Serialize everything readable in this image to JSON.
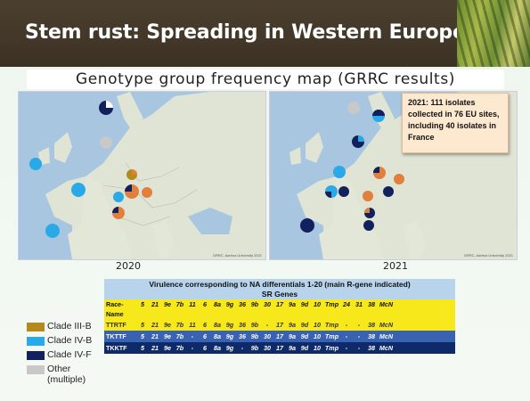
{
  "header": {
    "title": "Stem rust: Spreading in Western Europe"
  },
  "subtitle": "Genotype group frequency map (GRRC results)",
  "maps": [
    {
      "year": "2020",
      "credit": "GRRC, Aarhus University 2021"
    },
    {
      "year": "2021",
      "credit": "GRRC, Aarhus University 2021"
    }
  ],
  "callout": "2021: 111 isolates collected in 76 EU sites, including 40 isolates in France",
  "legend": [
    {
      "label": "Clade III-B",
      "color": "#b58a1c"
    },
    {
      "label": "Clade IV-B",
      "color": "#29a9e8"
    },
    {
      "label": "Clade IV-F",
      "color": "#12205e"
    },
    {
      "label": "Other (multiple)",
      "color": "#c8c8c8"
    }
  ],
  "table": {
    "title": "Virulence corresponding to NA differentials 1-20 (main R-gene indicated)",
    "subtitle": "SR Genes",
    "header": [
      "Race-Name",
      "5",
      "21",
      "9e",
      "7b",
      "11",
      "6",
      "8a",
      "9g",
      "36",
      "9b",
      "30",
      "17",
      "9a",
      "9d",
      "10",
      "Tmp",
      "24",
      "31",
      "38",
      "McN"
    ],
    "rows": [
      [
        "TTRTF",
        "5",
        "21",
        "9e",
        "7b",
        "11",
        "6",
        "8a",
        "9g",
        "36",
        "9b",
        "-",
        "17",
        "9a",
        "9d",
        "10",
        "Tmp",
        "-",
        "-",
        "38",
        "McN"
      ],
      [
        "TKTTF",
        "5",
        "21",
        "9e",
        "7b",
        "-",
        "6",
        "8a",
        "9g",
        "36",
        "9b",
        "30",
        "17",
        "9a",
        "9d",
        "10",
        "Tmp",
        "-",
        "-",
        "38",
        "McN"
      ],
      [
        "TKKTF",
        "5",
        "21",
        "9e",
        "7b",
        "-",
        "6",
        "8a",
        "9g",
        "-",
        "9b",
        "30",
        "17",
        "9a",
        "9d",
        "10",
        "Tmp",
        "-",
        "-",
        "38",
        "McN"
      ]
    ]
  }
}
